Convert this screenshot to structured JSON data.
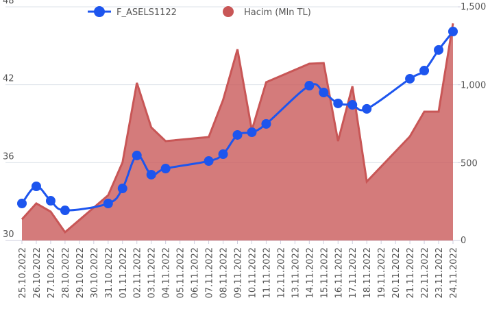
{
  "chart_data": {
    "type": "line-area",
    "x": [
      "25.10.2022",
      "26.10.2022",
      "27.10.2022",
      "28.10.2022",
      "31.10.2022",
      "01.11.2022",
      "02.11.2022",
      "03.11.2022",
      "04.11.2022",
      "07.11.2022",
      "08.11.2022",
      "09.11.2022",
      "10.11.2022",
      "11.11.2022",
      "14.11.2022",
      "15.11.2022",
      "16.11.2022",
      "17.11.2022",
      "18.11.2022",
      "21.11.2022",
      "22.11.2022",
      "23.11.2022",
      "24.11.2022"
    ],
    "xticks": [
      "25.10.2022",
      "26.10.2022",
      "27.10.2022",
      "28.10.2022",
      "29.10.2022",
      "30.10.2022",
      "31.10.2022",
      "01.11.2022",
      "02.11.2022",
      "03.11.2022",
      "04.11.2022",
      "05.11.2022",
      "06.11.2022",
      "07.11.2022",
      "08.11.2022",
      "09.11.2022",
      "10.11.2022",
      "11.11.2022",
      "12.11.2022",
      "13.11.2022",
      "14.11.2022",
      "15.11.2022",
      "16.11.2022",
      "17.11.2022",
      "18.11.2022",
      "19.11.2022",
      "20.11.2022",
      "21.11.2022",
      "22.11.2022",
      "23.11.2022",
      "24.11.2022"
    ],
    "series": [
      {
        "name": "F_ASELS1122",
        "kind": "line",
        "color": "#1d55ee",
        "values": [
          32.85,
          34.17,
          33.06,
          32.32,
          32.85,
          34.01,
          36.55,
          35.07,
          35.54,
          36.12,
          36.65,
          38.13,
          38.34,
          38.98,
          41.93,
          41.4,
          40.56,
          40.45,
          40.14,
          42.46,
          43.09,
          44.68,
          46.1
        ]
      },
      {
        "name": "Hacim (Mln TL)",
        "kind": "area",
        "axis": "y2",
        "color": "#c85656",
        "values": [
          136,
          238,
          185,
          53,
          290,
          501,
          1012,
          726,
          638,
          664,
          902,
          1227,
          708,
          1016,
          1135,
          1139,
          638,
          990,
          378,
          668,
          827,
          827,
          1394
        ]
      }
    ],
    "ylim": [
      30,
      48
    ],
    "yticks": [
      30,
      36,
      42,
      48
    ],
    "y2lim": [
      0,
      1500
    ],
    "y2ticks": [
      0,
      500,
      {
        "value": 1000,
        "label": "1,000"
      },
      {
        "value": 1500,
        "label": "1,500"
      }
    ],
    "grid": true,
    "legend": "top"
  }
}
